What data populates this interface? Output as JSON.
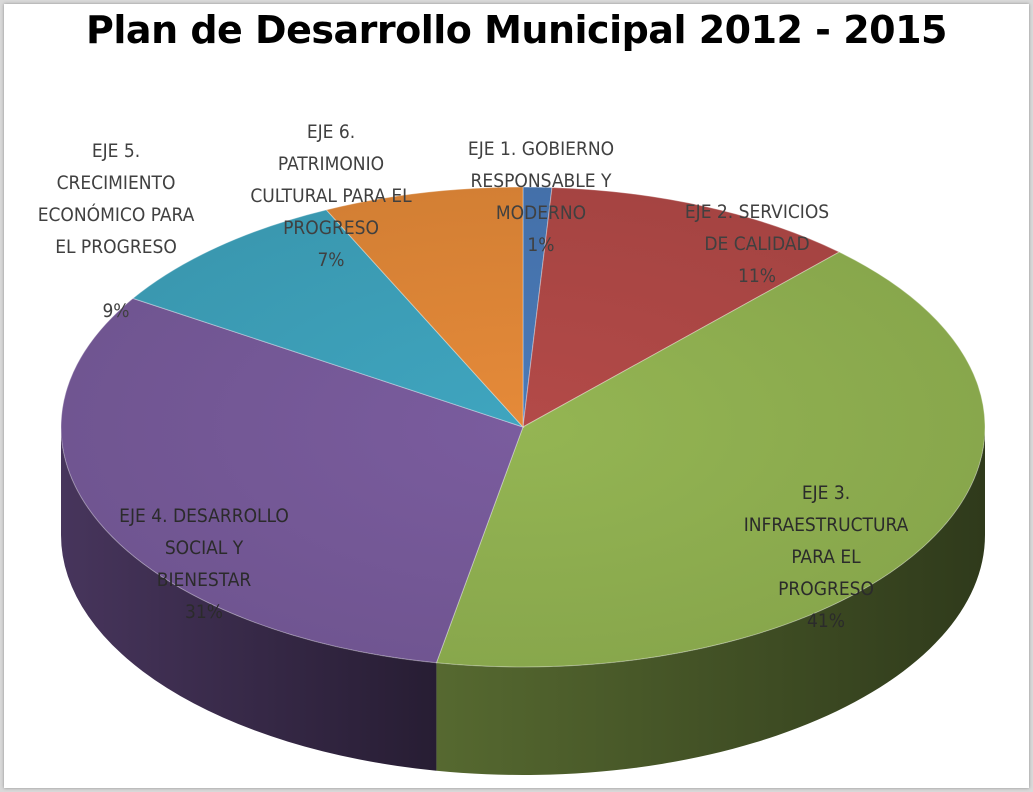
{
  "chart_data": {
    "type": "pie",
    "title": "Plan de Desarrollo Municipal 2012 - 2015",
    "slices": [
      {
        "label": "EJE 1. GOBIERNO RESPONSABLE Y MODERNO",
        "value": 1,
        "display": "1%",
        "color": "#4a7ab8"
      },
      {
        "label": "EJE 2. SERVICIOS DE CALIDAD",
        "value": 11,
        "display": "11%",
        "color": "#b34a48"
      },
      {
        "label": "EJE 3. INFRAESTRUCTURA PARA EL PROGRESO",
        "value": 41,
        "display": "41%",
        "color": "#94b553"
      },
      {
        "label": "EJE 4. DESARROLLO SOCIAL Y BIENESTAR",
        "value": 31,
        "display": "31%",
        "color": "#7a5c9e"
      },
      {
        "label": "EJE 5. CRECIMIENTO ECONÓMICO PARA EL PROGRESO",
        "value": 9,
        "display": "9%",
        "color": "#3fa5bf"
      },
      {
        "label": "EJE 6. PATRIMONIO CULTURAL PARA EL PROGRESO",
        "value": 7,
        "display": "7%",
        "color": "#e58a39"
      }
    ],
    "style": "3d-perspective"
  }
}
